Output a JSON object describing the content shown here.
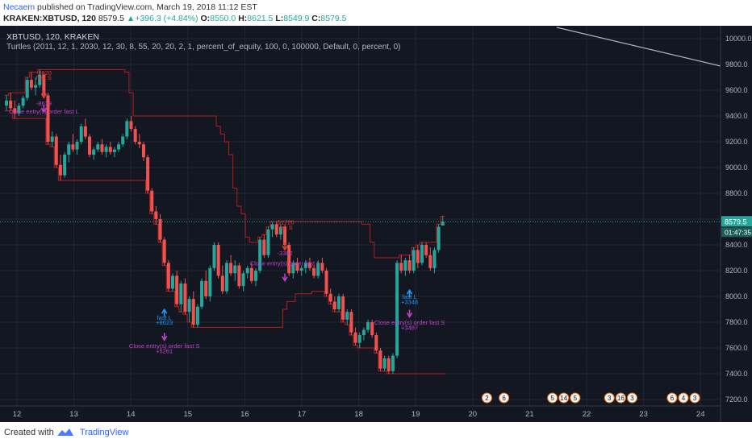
{
  "header": {
    "author": "Necaem",
    "published_text": " published on TradingView.com, March 19, 2018 11:12 EST",
    "symbol": "KRAKEN:XBTUSD, 120",
    "last": "8579.5",
    "change_arrow": "▲",
    "change": "+396.3 (+4.84%)",
    "open_label": "O:",
    "open": "8550.0",
    "high_label": "H:",
    "high": "8621.5",
    "low_label": "L:",
    "low": "8549.9",
    "close_label": "C:",
    "close": "8579.5"
  },
  "legend": {
    "title": "XBTUSD, 120, KRAKEN",
    "strategy": "Turtles (2011, 12, 1, 2030, 12, 30, 8, 55, 20, 20, 2, 1, percent_of_equity, 100, 0, 100000, Default, 0, percent, 0)"
  },
  "footer": {
    "created": "Created with",
    "brand": "TradingView"
  },
  "colors": {
    "background": "#131722",
    "grid": "#232733",
    "up": "#26a69a",
    "down": "#ef5350",
    "channel": "#b71c1c",
    "entry": "#2196f3",
    "exit": "#c040c8",
    "short": "#e53935",
    "price_line": "#26a69a"
  },
  "icons": [
    "tradingview-logo-icon",
    "arrow-up-icon",
    "arrow-down-icon",
    "flag-icon"
  ],
  "chart_data": {
    "type": "candlestick",
    "ylim": [
      7150,
      10100
    ],
    "yticks": [
      "10000.0",
      "9800.0",
      "9600.0",
      "9400.0",
      "9200.0",
      "9000.0",
      "8800.0",
      "8600.0",
      "8400.0",
      "8200.0",
      "8000.0",
      "7800.0",
      "7600.0",
      "7400.0",
      "7200.0"
    ],
    "xticks": [
      "12",
      "13",
      "14",
      "15",
      "16",
      "17",
      "18",
      "19",
      "20",
      "21",
      "22",
      "23",
      "24"
    ],
    "last_price": "8579.5",
    "countdown": "01:47:35",
    "candles": [
      [
        9480,
        9560,
        9440,
        9520
      ],
      [
        9520,
        9580,
        9450,
        9460
      ],
      [
        9460,
        9520,
        9380,
        9420
      ],
      [
        9420,
        9500,
        9400,
        9480
      ],
      [
        9480,
        9560,
        9460,
        9540
      ],
      [
        9540,
        9700,
        9520,
        9680
      ],
      [
        9680,
        9740,
        9600,
        9620
      ],
      [
        9620,
        9700,
        9560,
        9640
      ],
      [
        9640,
        9760,
        9620,
        9720
      ],
      [
        9720,
        9740,
        9540,
        9560
      ],
      [
        9560,
        9580,
        9180,
        9200
      ],
      [
        9200,
        9280,
        9160,
        9240
      ],
      [
        9240,
        9260,
        9000,
        9020
      ],
      [
        9020,
        9100,
        8900,
        8940
      ],
      [
        8940,
        9120,
        8920,
        9100
      ],
      [
        9100,
        9200,
        9040,
        9180
      ],
      [
        9180,
        9260,
        9120,
        9140
      ],
      [
        9140,
        9220,
        9100,
        9200
      ],
      [
        9200,
        9340,
        9180,
        9320
      ],
      [
        9320,
        9380,
        9220,
        9240
      ],
      [
        9240,
        9260,
        9080,
        9100
      ],
      [
        9100,
        9160,
        9060,
        9140
      ],
      [
        9140,
        9200,
        9120,
        9180
      ],
      [
        9180,
        9220,
        9100,
        9120
      ],
      [
        9120,
        9180,
        9080,
        9160
      ],
      [
        9160,
        9200,
        9100,
        9120
      ],
      [
        9120,
        9160,
        9080,
        9140
      ],
      [
        9140,
        9200,
        9120,
        9180
      ],
      [
        9180,
        9260,
        9160,
        9240
      ],
      [
        9240,
        9380,
        9220,
        9360
      ],
      [
        9360,
        9400,
        9280,
        9300
      ],
      [
        9300,
        9320,
        9180,
        9200
      ],
      [
        9200,
        9260,
        9150,
        9180
      ],
      [
        9180,
        9200,
        9050,
        9080
      ],
      [
        9080,
        9100,
        8800,
        8820
      ],
      [
        8820,
        8840,
        8640,
        8660
      ],
      [
        8660,
        8700,
        8560,
        8600
      ],
      [
        8600,
        8640,
        8420,
        8440
      ],
      [
        8440,
        8460,
        8240,
        8260
      ],
      [
        8260,
        8280,
        8040,
        8060
      ],
      [
        8060,
        8180,
        8040,
        8160
      ],
      [
        8160,
        8200,
        7920,
        7940
      ],
      [
        7940,
        8120,
        7880,
        8100
      ],
      [
        8100,
        8140,
        7860,
        7880
      ],
      [
        7880,
        8000,
        7800,
        7980
      ],
      [
        7980,
        8040,
        7760,
        7780
      ],
      [
        7780,
        7940,
        7760,
        7920
      ],
      [
        7920,
        8140,
        7900,
        8120
      ],
      [
        8120,
        8200,
        7980,
        8000
      ],
      [
        8000,
        8240,
        7960,
        8220
      ],
      [
        8220,
        8420,
        8200,
        8400
      ],
      [
        8400,
        8420,
        8140,
        8160
      ],
      [
        8160,
        8240,
        8020,
        8040
      ],
      [
        8040,
        8280,
        8020,
        8260
      ],
      [
        8260,
        8320,
        8160,
        8180
      ],
      [
        8180,
        8280,
        8120,
        8240
      ],
      [
        8240,
        8260,
        8060,
        8080
      ],
      [
        8080,
        8200,
        8040,
        8180
      ],
      [
        8180,
        8240,
        8140,
        8220
      ],
      [
        8220,
        8260,
        8100,
        8120
      ],
      [
        8120,
        8220,
        8080,
        8200
      ],
      [
        8200,
        8460,
        8180,
        8440
      ],
      [
        8440,
        8480,
        8300,
        8320
      ],
      [
        8320,
        8540,
        8300,
        8520
      ],
      [
        8520,
        8580,
        8460,
        8560
      ],
      [
        8560,
        8580,
        8460,
        8480
      ],
      [
        8480,
        8560,
        8440,
        8540
      ],
      [
        8540,
        8560,
        8380,
        8400
      ],
      [
        8400,
        8420,
        8160,
        8180
      ],
      [
        8180,
        8280,
        8140,
        8260
      ],
      [
        8260,
        8300,
        8180,
        8200
      ],
      [
        8200,
        8240,
        8160,
        8220
      ],
      [
        8220,
        8280,
        8180,
        8260
      ],
      [
        8260,
        8300,
        8200,
        8220
      ],
      [
        8220,
        8240,
        8140,
        8160
      ],
      [
        8160,
        8280,
        8140,
        8260
      ],
      [
        8260,
        8300,
        8180,
        8200
      ],
      [
        8200,
        8220,
        8000,
        8020
      ],
      [
        8020,
        8060,
        7940,
        7960
      ],
      [
        7960,
        8000,
        7880,
        7900
      ],
      [
        7900,
        8020,
        7880,
        8000
      ],
      [
        8000,
        8020,
        7800,
        7820
      ],
      [
        7820,
        7900,
        7780,
        7880
      ],
      [
        7880,
        7900,
        7700,
        7720
      ],
      [
        7720,
        7760,
        7620,
        7640
      ],
      [
        7640,
        7720,
        7600,
        7700
      ],
      [
        7700,
        7760,
        7660,
        7740
      ],
      [
        7740,
        7820,
        7720,
        7800
      ],
      [
        7800,
        7820,
        7680,
        7700
      ],
      [
        7700,
        7720,
        7560,
        7580
      ],
      [
        7580,
        7600,
        7420,
        7440
      ],
      [
        7440,
        7540,
        7420,
        7520
      ],
      [
        7520,
        7540,
        7400,
        7420
      ],
      [
        7420,
        7560,
        7400,
        7540
      ],
      [
        7540,
        8280,
        7520,
        8260
      ],
      [
        8260,
        8320,
        8180,
        8200
      ],
      [
        8200,
        8300,
        8160,
        8280
      ],
      [
        8280,
        8320,
        8180,
        8200
      ],
      [
        8200,
        8380,
        8180,
        8360
      ],
      [
        8360,
        8400,
        8220,
        8260
      ],
      [
        8260,
        8420,
        8240,
        8400
      ],
      [
        8400,
        8420,
        8300,
        8320
      ],
      [
        8320,
        8380,
        8200,
        8220
      ],
      [
        8220,
        8380,
        8180,
        8360
      ],
      [
        8360,
        8560,
        8340,
        8540
      ],
      [
        8550,
        8621.5,
        8549.9,
        8579.5
      ]
    ],
    "annotations": [
      {
        "text": "-8620",
        "color": "short",
        "x": 9,
        "price": 9720
      },
      {
        "text": "fast S",
        "color": "short",
        "x": 9,
        "price": 9680
      },
      {
        "text": "-8639",
        "color": "exit",
        "x": 9,
        "price": 9480
      },
      {
        "text": "Close entry(s) order fast L",
        "color": "exit",
        "x": 9,
        "price": 9420
      },
      {
        "text": "fast L",
        "color": "entry",
        "x": 38,
        "price": 7820
      },
      {
        "text": "+8623",
        "color": "entry",
        "x": 38,
        "price": 7780
      },
      {
        "text": "Close entry(s) order fast S",
        "color": "exit",
        "x": 38,
        "price": 7600
      },
      {
        "text": "+5261",
        "color": "exit",
        "x": 38,
        "price": 7560
      },
      {
        "text": "-51720",
        "color": "short",
        "x": 67,
        "price": 8560
      },
      {
        "text": "fast S",
        "color": "short",
        "x": 67,
        "price": 8520
      },
      {
        "text": "-3382",
        "color": "exit",
        "x": 67,
        "price": 8320
      },
      {
        "text": "Close entry(s) order fast L",
        "color": "exit",
        "x": 67,
        "price": 8240
      },
      {
        "text": "fast L",
        "color": "entry",
        "x": 97,
        "price": 7980
      },
      {
        "text": "+3348",
        "color": "entry",
        "x": 97,
        "price": 7940
      },
      {
        "text": "Close entry(s) order fast S",
        "color": "exit",
        "x": 97,
        "price": 7780
      },
      {
        "text": "+3487",
        "color": "exit",
        "x": 97,
        "price": 7740
      }
    ],
    "events": [
      {
        "label": "2",
        "x": 20.25
      },
      {
        "label": "6",
        "x": 20.55
      },
      {
        "label": "5",
        "x": 21.4
      },
      {
        "label": "14",
        "x": 21.6
      },
      {
        "label": "5",
        "x": 21.8
      },
      {
        "label": "3",
        "x": 22.4
      },
      {
        "label": "16",
        "x": 22.6
      },
      {
        "label": "3",
        "x": 22.8
      },
      {
        "label": "6",
        "x": 23.5
      },
      {
        "label": "4",
        "x": 23.7
      },
      {
        "label": "3",
        "x": 23.9
      }
    ]
  }
}
